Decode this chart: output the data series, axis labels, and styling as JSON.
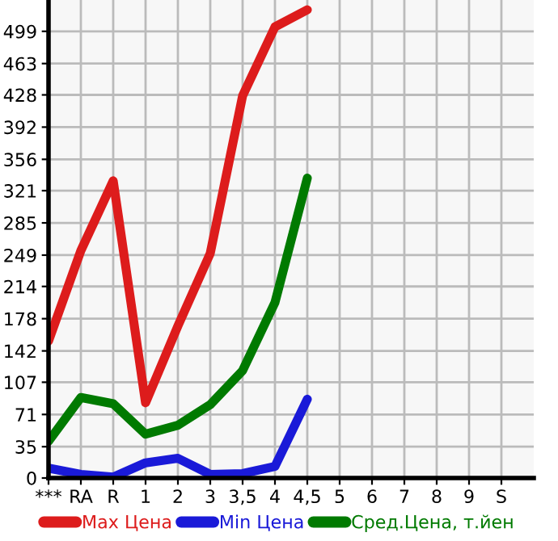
{
  "chart_data": {
    "type": "line",
    "categories": [
      "***",
      "RA",
      "R",
      "1",
      "2",
      "3",
      "3,5",
      "4",
      "4,5",
      "5",
      "6",
      "7",
      "8",
      "9",
      "S"
    ],
    "series": [
      {
        "name": "Max Цена",
        "color": "#dd1c1c",
        "values": [
          153,
          254,
          332,
          84,
          170,
          251,
          427,
          504,
          523,
          null,
          null,
          null,
          null,
          null,
          null
        ]
      },
      {
        "name": "Min Цена",
        "color": "#1a1ad8",
        "values": [
          11,
          4,
          1,
          17,
          22,
          4,
          5,
          13,
          88,
          null,
          null,
          null,
          null,
          null,
          null
        ]
      },
      {
        "name": "Сред.Цена, т.йен",
        "color": "#007a00",
        "values": [
          41,
          90,
          83,
          49,
          59,
          82,
          120,
          196,
          335,
          null,
          null,
          null,
          null,
          null,
          null
        ]
      }
    ],
    "ylim": [
      0,
      534
    ],
    "yticks": [
      0,
      35,
      71,
      107,
      142,
      178,
      214,
      249,
      285,
      321,
      356,
      392,
      428,
      463,
      499
    ],
    "grid": true,
    "legend": "bottom",
    "marker": "none",
    "line_style": "solid"
  }
}
